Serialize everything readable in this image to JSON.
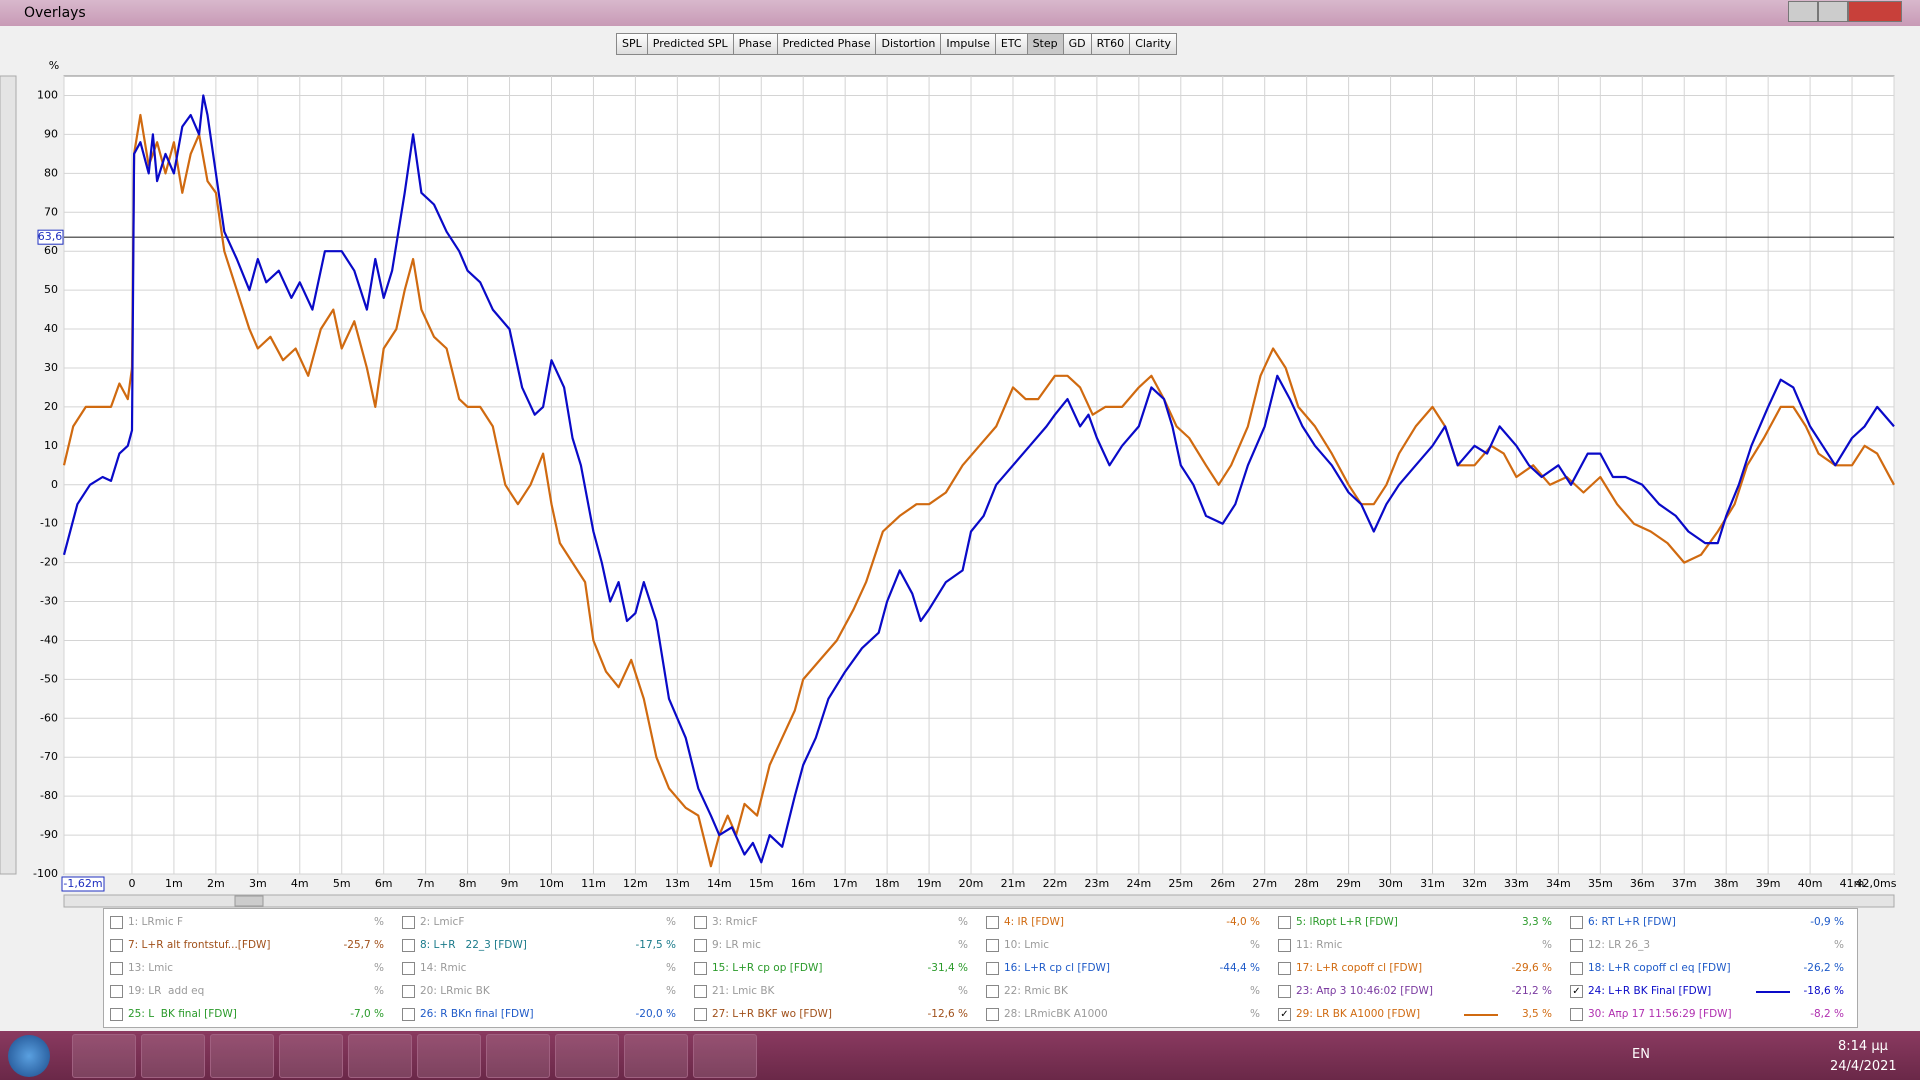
{
  "window": {
    "title": "Overlays"
  },
  "toolbar": [
    "SPL",
    "Predicted SPL",
    "Phase",
    "Predicted Phase",
    "Distortion",
    "Impulse",
    "ETC",
    "Step",
    "GD",
    "RT60",
    "Clarity"
  ],
  "active_tab": 7,
  "chart_data": {
    "type": "line",
    "y_unit": "%",
    "xlim": [
      -1.62,
      42
    ],
    "ylim": [
      -100,
      100
    ],
    "xticks": [
      {
        "value": -1.62,
        "label": "-1,62m"
      },
      {
        "value": 0,
        "label": "0"
      },
      {
        "value": 1,
        "label": "1m"
      },
      {
        "value": 2,
        "label": "2m"
      },
      {
        "value": 3,
        "label": "3m"
      },
      {
        "value": 4,
        "label": "4m"
      },
      {
        "value": 5,
        "label": "5m"
      },
      {
        "value": 6,
        "label": "6m"
      },
      {
        "value": 7,
        "label": "7m"
      },
      {
        "value": 8,
        "label": "8m"
      },
      {
        "value": 9,
        "label": "9m"
      },
      {
        "value": 10,
        "label": "10m"
      },
      {
        "value": 11,
        "label": "11m"
      },
      {
        "value": 12,
        "label": "12m"
      },
      {
        "value": 13,
        "label": "13m"
      },
      {
        "value": 14,
        "label": "14m"
      },
      {
        "value": 15,
        "label": "15m"
      },
      {
        "value": 16,
        "label": "16m"
      },
      {
        "value": 17,
        "label": "17m"
      },
      {
        "value": 18,
        "label": "18m"
      },
      {
        "value": 19,
        "label": "19m"
      },
      {
        "value": 20,
        "label": "20m"
      },
      {
        "value": 21,
        "label": "21m"
      },
      {
        "value": 22,
        "label": "22m"
      },
      {
        "value": 23,
        "label": "23m"
      },
      {
        "value": 24,
        "label": "24m"
      },
      {
        "value": 25,
        "label": "25m"
      },
      {
        "value": 26,
        "label": "26m"
      },
      {
        "value": 27,
        "label": "27m"
      },
      {
        "value": 28,
        "label": "28m"
      },
      {
        "value": 29,
        "label": "29m"
      },
      {
        "value": 30,
        "label": "30m"
      },
      {
        "value": 31,
        "label": "31m"
      },
      {
        "value": 32,
        "label": "32m"
      },
      {
        "value": 33,
        "label": "33m"
      },
      {
        "value": 34,
        "label": "34m"
      },
      {
        "value": 35,
        "label": "35m"
      },
      {
        "value": 36,
        "label": "36m"
      },
      {
        "value": 37,
        "label": "37m"
      },
      {
        "value": 38,
        "label": "38m"
      },
      {
        "value": 39,
        "label": "39m"
      },
      {
        "value": 40,
        "label": "40m"
      },
      {
        "value": 41,
        "label": "41m"
      },
      {
        "value": 42,
        "label": "42,0ms"
      }
    ],
    "yticks": [
      -100,
      -90,
      -80,
      -70,
      -60,
      -50,
      -40,
      -30,
      -20,
      -10,
      0,
      10,
      20,
      30,
      40,
      50,
      60,
      70,
      80,
      90,
      100
    ],
    "grid": true,
    "cursor": {
      "value": 63.6,
      "label": "63,6"
    },
    "series": [
      {
        "color": "#0a0ac8",
        "x": [
          -1.62,
          -1.3,
          -1,
          -0.7,
          -0.5,
          -0.3,
          -0.1,
          0,
          0.05,
          0.2,
          0.4,
          0.5,
          0.6,
          0.8,
          1,
          1.2,
          1.4,
          1.6,
          1.7,
          1.8,
          2,
          2.2,
          2.5,
          2.8,
          3,
          3.2,
          3.5,
          3.8,
          4,
          4.3,
          4.6,
          5,
          5.3,
          5.6,
          5.8,
          6,
          6.2,
          6.5,
          6.7,
          6.9,
          7.2,
          7.5,
          7.8,
          8,
          8.3,
          8.6,
          9,
          9.3,
          9.6,
          9.8,
          10,
          10.3,
          10.5,
          10.7,
          11,
          11.2,
          11.4,
          11.6,
          11.8,
          12,
          12.2,
          12.5,
          12.8,
          13.2,
          13.5,
          13.8,
          14,
          14.3,
          14.6,
          14.8,
          15,
          15.2,
          15.5,
          15.8,
          16,
          16.3,
          16.6,
          17,
          17.4,
          17.8,
          18,
          18.3,
          18.6,
          18.8,
          19,
          19.4,
          19.8,
          20,
          20.3,
          20.6,
          21,
          21.4,
          21.8,
          22,
          22.3,
          22.6,
          22.8,
          23,
          23.3,
          23.6,
          24,
          24.3,
          24.6,
          24.8,
          25,
          25.3,
          25.6,
          26,
          26.3,
          26.6,
          27,
          27.3,
          27.6,
          27.9,
          28.2,
          28.6,
          29,
          29.3,
          29.6,
          29.9,
          30.2,
          30.6,
          31,
          31.3,
          31.6,
          32,
          32.3,
          32.6,
          33,
          33.3,
          33.6,
          34,
          34.3,
          34.7,
          35,
          35.3,
          35.6,
          36,
          36.4,
          36.8,
          37.1,
          37.5,
          37.8,
          38,
          38.3,
          38.6,
          39,
          39.3,
          39.6,
          40,
          40.3,
          40.6,
          41,
          41.3,
          41.6,
          42
        ],
        "values": [
          -18,
          -5,
          0,
          2,
          1,
          8,
          10,
          14,
          85,
          88,
          80,
          90,
          78,
          85,
          80,
          92,
          95,
          90,
          100,
          95,
          80,
          65,
          58,
          50,
          58,
          52,
          55,
          48,
          52,
          45,
          60,
          60,
          55,
          45,
          58,
          48,
          55,
          75,
          90,
          75,
          72,
          65,
          60,
          55,
          52,
          45,
          40,
          25,
          18,
          20,
          32,
          25,
          12,
          5,
          -12,
          -20,
          -30,
          -25,
          -35,
          -33,
          -25,
          -35,
          -55,
          -65,
          -78,
          -85,
          -90,
          -88,
          -95,
          -92,
          -97,
          -90,
          -93,
          -80,
          -72,
          -65,
          -55,
          -48,
          -42,
          -38,
          -30,
          -22,
          -28,
          -35,
          -32,
          -25,
          -22,
          -12,
          -8,
          0,
          5,
          10,
          15,
          18,
          22,
          15,
          18,
          12,
          5,
          10,
          15,
          25,
          22,
          15,
          5,
          0,
          -8,
          -10,
          -5,
          5,
          15,
          28,
          22,
          15,
          10,
          5,
          -2,
          -5,
          -12,
          -5,
          0,
          5,
          10,
          15,
          5,
          10,
          8,
          15,
          10,
          5,
          2,
          5,
          0,
          8,
          8,
          2,
          2,
          0,
          -5,
          -8,
          -12,
          -15,
          -15,
          -8,
          0,
          10,
          20,
          27,
          25,
          15,
          10,
          5,
          12,
          15,
          20,
          15
        ]
      },
      {
        "color": "#d06a10",
        "x": [
          -1.62,
          -1.4,
          -1.1,
          -0.8,
          -0.5,
          -0.3,
          -0.1,
          0,
          0.05,
          0.2,
          0.4,
          0.6,
          0.8,
          1,
          1.2,
          1.4,
          1.6,
          1.8,
          2,
          2.2,
          2.5,
          2.8,
          3,
          3.3,
          3.6,
          3.9,
          4.2,
          4.5,
          4.8,
          5,
          5.3,
          5.6,
          5.8,
          6,
          6.3,
          6.5,
          6.7,
          6.9,
          7.2,
          7.5,
          7.8,
          8,
          8.3,
          8.6,
          8.9,
          9.2,
          9.5,
          9.8,
          10,
          10.2,
          10.5,
          10.8,
          11,
          11.3,
          11.6,
          11.9,
          12.2,
          12.5,
          12.8,
          13.2,
          13.5,
          13.8,
          14,
          14.2,
          14.4,
          14.6,
          14.9,
          15.2,
          15.5,
          15.8,
          16,
          16.4,
          16.8,
          17.2,
          17.5,
          17.9,
          18.3,
          18.7,
          19,
          19.4,
          19.8,
          20.2,
          20.6,
          21,
          21.3,
          21.6,
          22,
          22.3,
          22.6,
          22.9,
          23.2,
          23.6,
          24,
          24.3,
          24.6,
          24.9,
          25.2,
          25.6,
          25.9,
          26.2,
          26.6,
          26.9,
          27.2,
          27.5,
          27.8,
          28.2,
          28.6,
          29,
          29.3,
          29.6,
          29.9,
          30.2,
          30.6,
          31,
          31.3,
          31.6,
          32,
          32.4,
          32.7,
          33,
          33.4,
          33.8,
          34.2,
          34.6,
          35,
          35.4,
          35.8,
          36.2,
          36.6,
          37,
          37.4,
          37.8,
          38.2,
          38.5,
          38.9,
          39.3,
          39.6,
          39.9,
          40.2,
          40.6,
          41,
          41.3,
          41.6,
          42
        ],
        "values": [
          5,
          15,
          20,
          20,
          20,
          26,
          22,
          30,
          85,
          95,
          82,
          88,
          80,
          88,
          75,
          85,
          90,
          78,
          75,
          60,
          50,
          40,
          35,
          38,
          32,
          35,
          28,
          40,
          45,
          35,
          42,
          30,
          20,
          35,
          40,
          50,
          58,
          45,
          38,
          35,
          22,
          20,
          20,
          15,
          0,
          -5,
          0,
          8,
          -5,
          -15,
          -20,
          -25,
          -40,
          -48,
          -52,
          -45,
          -55,
          -70,
          -78,
          -83,
          -85,
          -98,
          -90,
          -85,
          -90,
          -82,
          -85,
          -72,
          -65,
          -58,
          -50,
          -45,
          -40,
          -32,
          -25,
          -12,
          -8,
          -5,
          -5,
          -2,
          5,
          10,
          15,
          25,
          22,
          22,
          28,
          28,
          25,
          18,
          20,
          20,
          25,
          28,
          22,
          15,
          12,
          5,
          0,
          5,
          15,
          28,
          35,
          30,
          20,
          15,
          8,
          0,
          -5,
          -5,
          0,
          8,
          15,
          20,
          15,
          5,
          5,
          10,
          8,
          2,
          5,
          0,
          2,
          -2,
          2,
          -5,
          -10,
          -12,
          -15,
          -20,
          -18,
          -12,
          -5,
          5,
          12,
          20,
          20,
          15,
          8,
          5,
          5,
          10,
          8,
          0
        ]
      }
    ]
  },
  "overlays": [
    {
      "label": "1: LRmic F",
      "value": "%",
      "color": "#9a9a9a",
      "checked": false
    },
    {
      "label": "2: LmicF",
      "value": "%",
      "color": "#9a9a9a",
      "checked": false
    },
    {
      "label": "3: RmicF",
      "value": "%",
      "color": "#9a9a9a",
      "checked": false
    },
    {
      "label": "4: IR [FDW]",
      "value": "-4,0 %",
      "color": "#d06a10",
      "checked": false
    },
    {
      "label": "5: lRopt L+R [FDW]",
      "value": "3,3 %",
      "color": "#2a9a2a",
      "checked": false
    },
    {
      "label": "6: RT L+R [FDW]",
      "value": "-0,9 %",
      "color": "#1e5ac8",
      "checked": false
    },
    {
      "label": "7: L+R alt frontstuf...[FDW]",
      "value": "-25,7 %",
      "color": "#a0501a",
      "checked": false
    },
    {
      "label": "8: L+R   22_3 [FDW]",
      "value": "-17,5 %",
      "color": "#1a7a8a",
      "checked": false
    },
    {
      "label": "9: LR mic",
      "value": "%",
      "color": "#9a9a9a",
      "checked": false
    },
    {
      "label": "10: Lmic",
      "value": "%",
      "color": "#9a9a9a",
      "checked": false
    },
    {
      "label": "11: Rmic",
      "value": "%",
      "color": "#9a9a9a",
      "checked": false
    },
    {
      "label": "12: LR 26_3",
      "value": "%",
      "color": "#9a9a9a",
      "checked": false
    },
    {
      "label": "13: Lmic",
      "value": "%",
      "color": "#9a9a9a",
      "checked": false
    },
    {
      "label": "14: Rmic",
      "value": "%",
      "color": "#9a9a9a",
      "checked": false
    },
    {
      "label": "15: L+R cp op [FDW]",
      "value": "-31,4 %",
      "color": "#2a9a2a",
      "checked": false
    },
    {
      "label": "16: L+R cp cl [FDW]",
      "value": "-44,4 %",
      "color": "#1e5ac8",
      "checked": false
    },
    {
      "label": "17: L+R copoff cl [FDW]",
      "value": "-29,6 %",
      "color": "#d06a10",
      "checked": false
    },
    {
      "label": "18: L+R copoff cl eq [FDW]",
      "value": "-26,2 %",
      "color": "#1e5ac8",
      "checked": false
    },
    {
      "label": "19: LR  add eq",
      "value": "%",
      "color": "#9a9a9a",
      "checked": false
    },
    {
      "label": "20: LRmic BK",
      "value": "%",
      "color": "#9a9a9a",
      "checked": false
    },
    {
      "label": "21: Lmic BK",
      "value": "%",
      "color": "#9a9a9a",
      "checked": false
    },
    {
      "label": "22: Rmic BK",
      "value": "%",
      "color": "#9a9a9a",
      "checked": false
    },
    {
      "label": "23: Απρ 3 10:46:02 [FDW]",
      "value": "-21,2 %",
      "color": "#7a3aa0",
      "checked": false
    },
    {
      "label": "24: L+R BK Final [FDW]",
      "value": "-18,6 %",
      "color": "#0a0ac8",
      "checked": true
    },
    {
      "label": "25: L  BK final [FDW]",
      "value": "-7,0 %",
      "color": "#2a9a2a",
      "checked": false
    },
    {
      "label": "26: R BKn final [FDW]",
      "value": "-20,0 %",
      "color": "#1e5ac8",
      "checked": false
    },
    {
      "label": "27: L+R BKF wo [FDW]",
      "value": "-12,6 %",
      "color": "#a0501a",
      "checked": false
    },
    {
      "label": "28: LRmicBK A1000",
      "value": "%",
      "color": "#9a9a9a",
      "checked": false
    },
    {
      "label": "29: LR BK A1000 [FDW]",
      "value": "3,5 %",
      "color": "#d06a10",
      "checked": true
    },
    {
      "label": "30: Απρ 17 11:56:29 [FDW]",
      "value": "-8,2 %",
      "color": "#b030b0",
      "checked": false
    }
  ],
  "taskbar": {
    "language": "EN",
    "time": "8:14 μμ",
    "date": "24/4/2021"
  }
}
